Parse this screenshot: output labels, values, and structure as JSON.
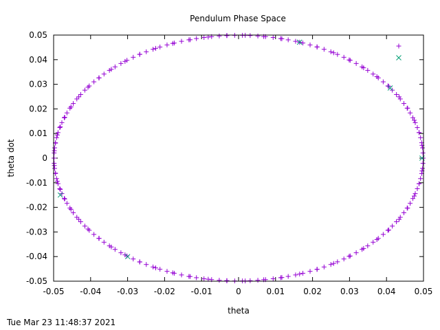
{
  "chart_data": {
    "type": "scatter",
    "title": "Pendulum Phase Space",
    "xlabel": "theta",
    "ylabel": "theta dot",
    "xlim": [
      -0.05,
      0.05
    ],
    "ylim": [
      -0.05,
      0.05
    ],
    "xticks": [
      "-0.05",
      "-0.04",
      "-0.03",
      "-0.02",
      "-0.01",
      "0",
      "0.01",
      "0.02",
      "0.03",
      "0.04",
      "0.05"
    ],
    "yticks": [
      "-0.05",
      "-0.04",
      "-0.03",
      "-0.02",
      "-0.01",
      "0",
      "0.01",
      "0.02",
      "0.03",
      "0.04",
      "0.05"
    ],
    "grid": false,
    "legend": "top-right",
    "amplitude_theta": 0.0499,
    "amplitude_theta_dot": 0.0499,
    "series": [
      {
        "marker": "plus",
        "color": "#9400d3",
        "points": [
          [
            0.0499,
            0.0
          ],
          [
            0.0496,
            0.0052
          ],
          [
            0.0488,
            0.0104
          ],
          [
            0.0475,
            0.0154
          ],
          [
            0.0457,
            0.0203
          ],
          [
            0.0434,
            0.0249
          ],
          [
            0.0406,
            0.0292
          ],
          [
            0.0374,
            0.0331
          ],
          [
            0.0338,
            0.0367
          ],
          [
            0.0299,
            0.0399
          ],
          [
            0.0257,
            0.0428
          ],
          [
            0.0212,
            0.0452
          ],
          [
            0.0165,
            0.0471
          ],
          [
            0.0117,
            0.0485
          ],
          [
            0.0068,
            0.0494
          ],
          [
            0.0018,
            0.0499
          ],
          [
            -0.0032,
            0.0498
          ],
          [
            -0.0082,
            0.0492
          ],
          [
            -0.0131,
            0.0481
          ],
          [
            -0.0178,
            0.0466
          ],
          [
            -0.0224,
            0.0446
          ],
          [
            -0.0267,
            0.0422
          ],
          [
            -0.0307,
            0.0393
          ],
          [
            -0.0344,
            0.0361
          ],
          [
            -0.0377,
            0.0326
          ],
          [
            -0.0407,
            0.0288
          ],
          [
            -0.0432,
            0.0249
          ],
          [
            -0.0453,
            0.0208
          ],
          [
            -0.047,
            0.0166
          ],
          [
            -0.0482,
            0.0127
          ],
          [
            -0.049,
            0.0094
          ],
          [
            -0.0495,
            0.0061
          ],
          [
            -0.0498,
            0.003
          ],
          [
            -0.0499,
            0.0
          ],
          [
            -0.0498,
            -0.003
          ],
          [
            -0.0495,
            -0.0061
          ],
          [
            -0.049,
            -0.0094
          ],
          [
            -0.0482,
            -0.0127
          ],
          [
            -0.047,
            -0.0166
          ],
          [
            -0.0453,
            -0.0208
          ],
          [
            -0.0432,
            -0.0249
          ],
          [
            -0.0407,
            -0.0288
          ],
          [
            -0.0377,
            -0.0326
          ],
          [
            -0.0344,
            -0.0361
          ],
          [
            -0.0307,
            -0.0393
          ],
          [
            -0.0267,
            -0.0422
          ],
          [
            -0.0224,
            -0.0446
          ],
          [
            -0.0178,
            -0.0466
          ],
          [
            -0.0131,
            -0.0481
          ],
          [
            -0.0082,
            -0.0492
          ],
          [
            -0.0032,
            -0.0498
          ],
          [
            0.0018,
            -0.0499
          ],
          [
            0.0068,
            -0.0494
          ],
          [
            0.0117,
            -0.0485
          ],
          [
            0.0165,
            -0.0471
          ],
          [
            0.0212,
            -0.0452
          ],
          [
            0.0257,
            -0.0428
          ],
          [
            0.0299,
            -0.0399
          ],
          [
            0.0338,
            -0.0367
          ],
          [
            0.0374,
            -0.0331
          ],
          [
            0.0406,
            -0.0292
          ],
          [
            0.0434,
            -0.0249
          ],
          [
            0.0457,
            -0.0203
          ],
          [
            0.0475,
            -0.0154
          ],
          [
            0.0488,
            -0.0104
          ],
          [
            0.0496,
            -0.0052
          ]
        ]
      },
      {
        "marker": "cross",
        "color": "#009e73",
        "points": [
          [
            0.0165,
            0.0471
          ],
          [
            0.041,
            0.0285
          ],
          [
            -0.0482,
            -0.015
          ],
          [
            -0.03,
            -0.04
          ],
          [
            0.0496,
            0.0
          ]
        ]
      }
    ]
  },
  "footer": {
    "timestamp": "Tue Mar 23 11:48:37 2021"
  }
}
